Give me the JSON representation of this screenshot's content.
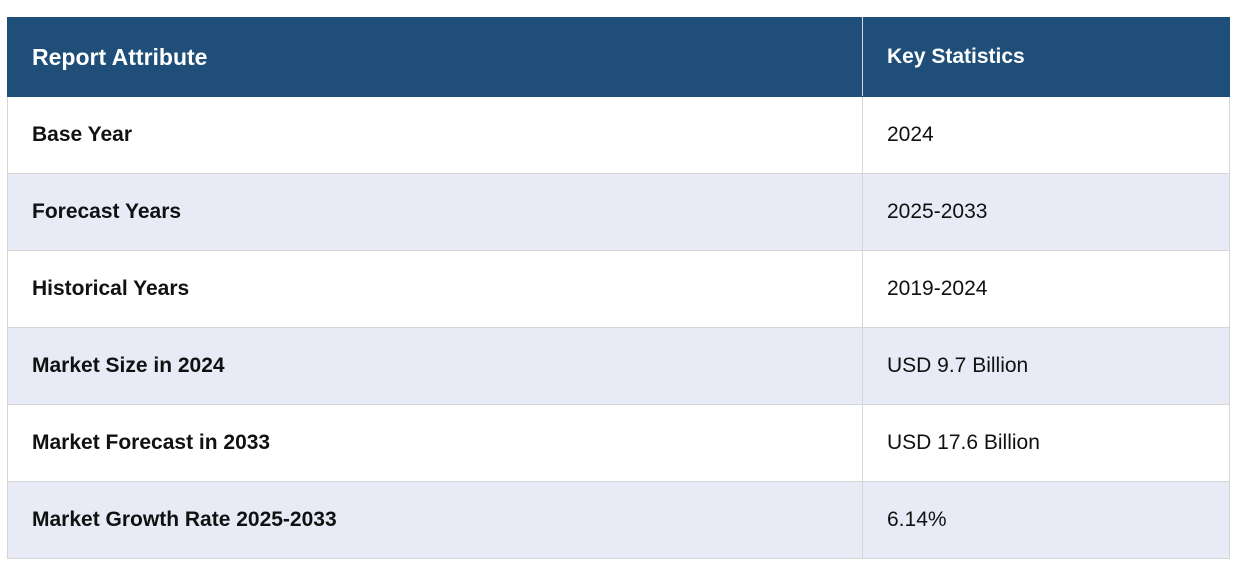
{
  "table": {
    "headers": {
      "attribute": "Report Attribute",
      "statistics": "Key Statistics"
    },
    "rows": [
      {
        "attribute": "Base Year",
        "value": "2024"
      },
      {
        "attribute": "Forecast Years",
        "value": "2025-2033"
      },
      {
        "attribute": "Historical Years",
        "value": "2019-2024"
      },
      {
        "attribute": "Market Size in 2024",
        "value": "USD 9.7 Billion"
      },
      {
        "attribute": "Market Forecast in 2033",
        "value": "USD 17.6 Billion"
      },
      {
        "attribute": "Market Growth Rate 2025-2033",
        "value": "6.14%"
      }
    ],
    "colors": {
      "header_bg": "#1f4e79",
      "header_text": "#ffffff",
      "stripe_bg": "#e8eaf6",
      "row_bg": "#ffffff",
      "border": "#d6d6d6"
    }
  }
}
